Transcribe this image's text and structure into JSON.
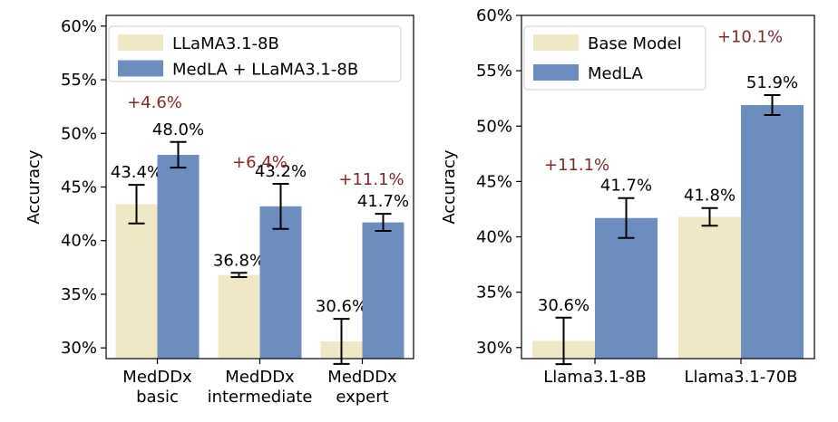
{
  "chart_data": [
    {
      "type": "bar",
      "ylabel": "Accuracy",
      "ylim": [
        29,
        61
      ],
      "yticks": [
        30,
        35,
        40,
        45,
        50,
        55,
        60
      ],
      "ytick_labels": [
        "30%",
        "35%",
        "40%",
        "45%",
        "50%",
        "55%",
        "60%"
      ],
      "categories": [
        [
          "MedDDx",
          "basic"
        ],
        [
          "MedDDx",
          "intermediate"
        ],
        [
          "MedDDx",
          "expert"
        ]
      ],
      "series": [
        {
          "name": "LLaMA3.1-8B",
          "color": "#f0e8c4",
          "values": [
            43.4,
            36.8,
            30.6
          ],
          "errors": [
            1.8,
            0.2,
            2.1
          ],
          "labels": [
            "43.4%",
            "36.8%",
            "30.6%"
          ]
        },
        {
          "name": "MedLA + LLaMA3.1-8B",
          "color": "#6c8ebf",
          "values": [
            48.0,
            43.2,
            41.7
          ],
          "errors": [
            1.2,
            2.1,
            0.8
          ],
          "labels": [
            "48.0%",
            "43.2%",
            "41.7%"
          ]
        }
      ],
      "gains": [
        {
          "text": "+4.6%",
          "y": 52.4
        },
        {
          "text": "+6.4%",
          "y": 46.8
        },
        {
          "text": "+11.1%",
          "y": 45.2
        }
      ],
      "legend": {
        "position": "top"
      }
    },
    {
      "type": "bar",
      "ylabel": "Accuracy",
      "ylim": [
        29,
        60
      ],
      "yticks": [
        30,
        35,
        40,
        45,
        50,
        55,
        60
      ],
      "ytick_labels": [
        "30%",
        "35%",
        "40%",
        "45%",
        "50%",
        "55%",
        "60%"
      ],
      "categories": [
        [
          "Llama3.1-8B"
        ],
        [
          "Llama3.1-70B"
        ]
      ],
      "series": [
        {
          "name": "Base Model",
          "color": "#f0e8c4",
          "values": [
            30.6,
            41.8
          ],
          "errors": [
            2.1,
            0.8
          ],
          "labels": [
            "30.6%",
            "41.8%"
          ]
        },
        {
          "name": "MedLA",
          "color": "#6c8ebf",
          "values": [
            41.7,
            51.9
          ],
          "errors": [
            1.8,
            0.9
          ],
          "labels": [
            "41.7%",
            "51.9%"
          ]
        }
      ],
      "gains": [
        {
          "text": "+11.1%",
          "y": 46.0
        },
        {
          "text": "+10.1%",
          "y": 57.6
        }
      ],
      "legend": {
        "position": "top-left"
      }
    }
  ]
}
